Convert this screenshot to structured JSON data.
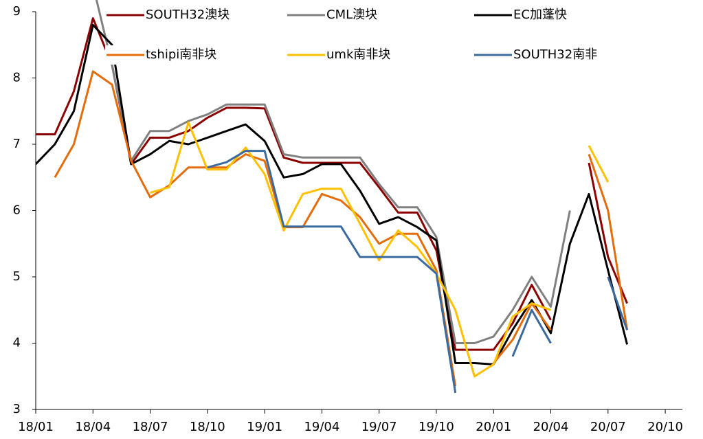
{
  "chart_data": {
    "type": "line",
    "categories": [
      "18/01",
      null,
      null,
      "18/04",
      null,
      null,
      "18/07",
      null,
      null,
      "18/10",
      null,
      null,
      "19/01",
      null,
      null,
      "19/04",
      null,
      null,
      "19/07",
      null,
      null,
      "19/10",
      null,
      null,
      "20/01",
      null,
      null,
      "20/04",
      null,
      null,
      "20/07",
      null,
      null,
      "20/10"
    ],
    "series": [
      {
        "name": "SOUTH32澳块",
        "color": "#8b0000",
        "values": [
          7.15,
          7.15,
          7.8,
          8.9,
          8.2,
          6.7,
          7.1,
          7.1,
          7.2,
          7.4,
          7.55,
          7.55,
          7.54,
          6.8,
          6.72,
          6.72,
          6.72,
          6.72,
          6.35,
          5.97,
          5.97,
          5.4,
          3.9,
          3.9,
          3.9,
          4.3,
          4.88,
          4.35,
          null,
          6.72,
          5.3,
          4.6,
          null,
          null
        ]
      },
      {
        "name": "CML澳块",
        "color": "#808080",
        "values": [
          null,
          null,
          null,
          9.4,
          8.2,
          6.75,
          7.2,
          7.2,
          7.35,
          7.45,
          7.6,
          7.6,
          7.6,
          6.85,
          6.8,
          6.8,
          6.8,
          6.8,
          6.4,
          6.05,
          6.05,
          5.6,
          4.0,
          4.0,
          4.1,
          4.5,
          5.0,
          4.55,
          6.0,
          null,
          null,
          null,
          null,
          null
        ]
      },
      {
        "name": "EC加蓬快",
        "color": "#000000",
        "values": [
          6.7,
          7.0,
          7.5,
          8.8,
          8.5,
          6.7,
          6.85,
          7.05,
          7.0,
          7.1,
          7.2,
          7.3,
          7.05,
          6.5,
          6.55,
          6.7,
          6.7,
          6.3,
          5.8,
          5.9,
          5.75,
          5.55,
          3.7,
          3.7,
          3.68,
          4.2,
          4.65,
          4.15,
          5.5,
          6.25,
          5.1,
          3.98,
          null,
          null
        ]
      },
      {
        "name": "tshipi南非块",
        "color": "#e46c0a",
        "values": [
          null,
          6.5,
          7.0,
          8.1,
          7.9,
          6.75,
          6.2,
          6.38,
          6.65,
          6.65,
          6.65,
          6.85,
          6.75,
          5.75,
          5.75,
          6.25,
          6.15,
          5.9,
          5.5,
          5.65,
          5.65,
          5.1,
          3.35,
          null,
          3.7,
          4.05,
          4.6,
          4.2,
          null,
          6.85,
          6.0,
          4.2,
          null,
          null
        ]
      },
      {
        "name": "umk南非块",
        "color": "#ffc000",
        "values": [
          null,
          null,
          null,
          null,
          null,
          null,
          6.27,
          6.35,
          7.33,
          6.62,
          6.62,
          6.95,
          6.55,
          5.7,
          6.25,
          6.33,
          6.33,
          5.8,
          5.25,
          5.7,
          5.45,
          5.05,
          4.5,
          3.5,
          3.68,
          4.4,
          4.6,
          4.5,
          null,
          6.98,
          6.43,
          null,
          null,
          null
        ]
      },
      {
        "name": "SOUTH32南非",
        "color": "#3a6a9e",
        "values": [
          null,
          null,
          null,
          null,
          null,
          null,
          null,
          null,
          null,
          6.65,
          6.73,
          6.9,
          6.9,
          5.76,
          5.76,
          5.76,
          5.76,
          5.3,
          5.3,
          5.3,
          5.3,
          5.05,
          3.25,
          null,
          null,
          3.8,
          4.5,
          4.0,
          null,
          null,
          5.0,
          4.2,
          null,
          null
        ]
      }
    ],
    "ylim": [
      3,
      9
    ],
    "yticks": [
      3,
      4,
      5,
      6,
      7,
      8,
      9
    ]
  }
}
